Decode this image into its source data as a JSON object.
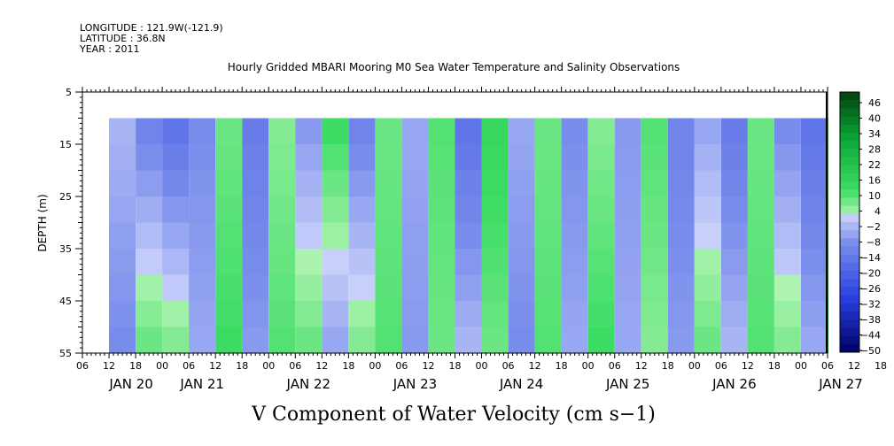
{
  "header": {
    "longitude": "LONGITUDE : 121.9W(-121.9)",
    "latitude": "LATITUDE : 36.8N",
    "year": "YEAR : 2011"
  },
  "chart_data": {
    "type": "heatmap",
    "title": "Hourly Gridded MBARI Mooring M0 Sea Water Temperature and Salinity Observations",
    "xlabel": "V Component of Water Velocity (cm s−1)",
    "ylabel": "DEPTH (m)",
    "y_ticks": [
      "5",
      "15",
      "25",
      "35",
      "45",
      "55"
    ],
    "y_range_m": [
      5,
      55
    ],
    "y_inverted": true,
    "x_hour_ticks": [
      "06",
      "12",
      "18",
      "00",
      "06",
      "12",
      "18",
      "00",
      "06",
      "12",
      "18",
      "00",
      "06",
      "12",
      "18",
      "00",
      "06",
      "12",
      "18",
      "00",
      "06",
      "12",
      "18",
      "00",
      "06",
      "12",
      "18",
      "00",
      "06",
      "12",
      "18",
      "00",
      "06"
    ],
    "x_day_labels": [
      "JAN 20",
      "JAN 21",
      "JAN 22",
      "JAN 23",
      "JAN 24",
      "JAN 25",
      "JAN 26",
      "JAN 27"
    ],
    "x_range": [
      "2011-01-20T06:00",
      "2011-01-27T06:00"
    ],
    "data_extent": {
      "start": "2011-01-20T12:00",
      "end": "2011-01-27T06:00",
      "depth_top_m": 10,
      "depth_bottom_m": 55
    },
    "colorbar": {
      "ticks": [
        "46",
        "40",
        "34",
        "28",
        "22",
        "16",
        "10",
        "4",
        "−2",
        "−8",
        "−14",
        "−20",
        "−26",
        "−32",
        "−38",
        "−44",
        "−50"
      ],
      "range": [
        -50,
        46
      ],
      "colors": {
        "most_negative": "#000066",
        "negative": "#2040e0",
        "near_zero_negative": "#b0b8f0",
        "near_zero_positive": "#a8f0a8",
        "positive": "#10c040",
        "most_positive": "#004010"
      }
    },
    "approx_columns": [
      {
        "time": "2011-01-20T12:00",
        "v_top": -4,
        "v_bottom": -10
      },
      {
        "time": "2011-01-20T18:00",
        "v_top": -12,
        "v_bottom": 6
      },
      {
        "time": "2011-01-21T00:00",
        "v_top": -16,
        "v_bottom": 4
      },
      {
        "time": "2011-01-21T06:00",
        "v_top": -10,
        "v_bottom": -6
      },
      {
        "time": "2011-01-21T12:00",
        "v_top": 6,
        "v_bottom": 10
      },
      {
        "time": "2011-01-21T18:00",
        "v_top": -14,
        "v_bottom": -8
      },
      {
        "time": "2011-01-22T00:00",
        "v_top": 4,
        "v_bottom": 8
      },
      {
        "time": "2011-01-22T06:00",
        "v_top": -8,
        "v_bottom": 6
      },
      {
        "time": "2011-01-22T12:00",
        "v_top": 10,
        "v_bottom": -6
      },
      {
        "time": "2011-01-22T18:00",
        "v_top": -12,
        "v_bottom": 4
      },
      {
        "time": "2011-01-23T00:00",
        "v_top": 6,
        "v_bottom": 8
      },
      {
        "time": "2011-01-23T06:00",
        "v_top": -6,
        "v_bottom": -8
      },
      {
        "time": "2011-01-23T12:00",
        "v_top": 8,
        "v_bottom": 6
      },
      {
        "time": "2011-01-23T18:00",
        "v_top": -16,
        "v_bottom": -4
      },
      {
        "time": "2011-01-24T00:00",
        "v_top": 12,
        "v_bottom": 6
      },
      {
        "time": "2011-01-24T06:00",
        "v_top": -6,
        "v_bottom": -10
      },
      {
        "time": "2011-01-24T12:00",
        "v_top": 6,
        "v_bottom": 8
      },
      {
        "time": "2011-01-24T18:00",
        "v_top": -10,
        "v_bottom": -6
      },
      {
        "time": "2011-01-25T00:00",
        "v_top": 4,
        "v_bottom": 10
      },
      {
        "time": "2011-01-25T06:00",
        "v_top": -8,
        "v_bottom": -6
      },
      {
        "time": "2011-01-25T12:00",
        "v_top": 8,
        "v_bottom": 4
      },
      {
        "time": "2011-01-25T18:00",
        "v_top": -12,
        "v_bottom": -8
      },
      {
        "time": "2011-01-26T00:00",
        "v_top": -6,
        "v_bottom": 6
      },
      {
        "time": "2011-01-26T06:00",
        "v_top": -14,
        "v_bottom": -4
      },
      {
        "time": "2011-01-26T12:00",
        "v_top": 6,
        "v_bottom": 8
      },
      {
        "time": "2011-01-26T18:00",
        "v_top": -10,
        "v_bottom": 4
      },
      {
        "time": "2011-01-27T00:00",
        "v_top": -16,
        "v_bottom": -6
      },
      {
        "time": "2011-01-27T06:00",
        "v_top": 6,
        "v_bottom": 10
      }
    ]
  }
}
